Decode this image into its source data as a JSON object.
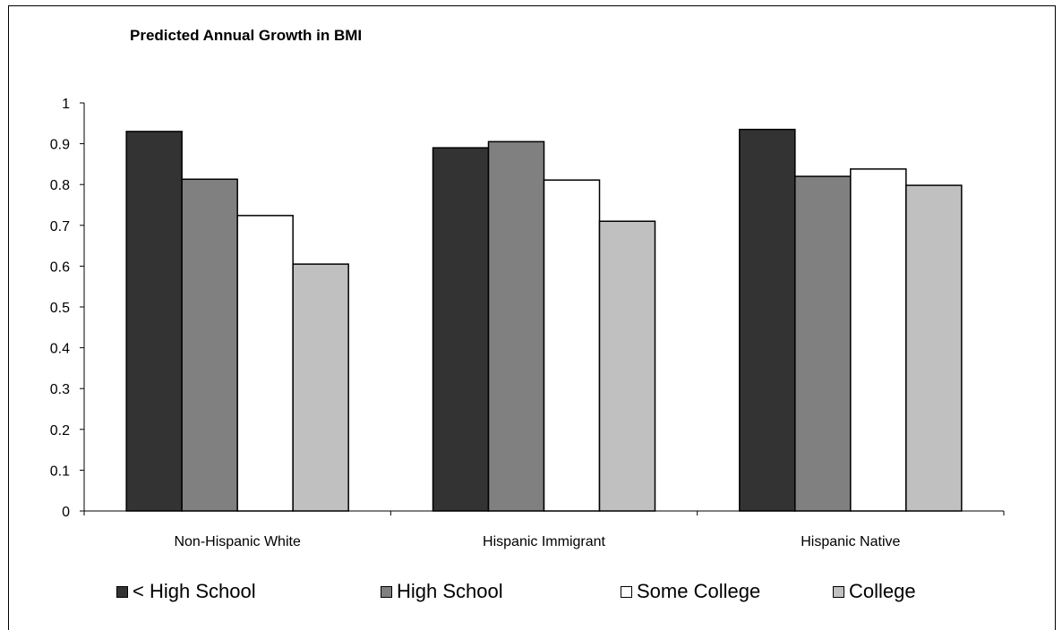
{
  "chart_data": {
    "type": "bar",
    "title": "Predicted Annual Growth in BMI",
    "xlabel": "",
    "ylabel": "",
    "ylim": [
      0,
      1
    ],
    "yticks": [
      "0",
      "0.1",
      "0.2",
      "0.3",
      "0.4",
      "0.5",
      "0.6",
      "0.7",
      "0.8",
      "0.9",
      "1"
    ],
    "categories": [
      "Non-Hispanic White",
      "Hispanic Immigrant",
      "Hispanic Native"
    ],
    "series": [
      {
        "name": "< High School",
        "color": "#333333",
        "values": [
          0.93,
          0.89,
          0.935
        ]
      },
      {
        "name": "High School",
        "color": "#808080",
        "values": [
          0.813,
          0.905,
          0.82
        ]
      },
      {
        "name": "Some College",
        "color": "#ffffff",
        "values": [
          0.724,
          0.811,
          0.838
        ]
      },
      {
        "name": "College",
        "color": "#c0c0c0",
        "values": [
          0.605,
          0.71,
          0.798
        ]
      }
    ],
    "grid": false,
    "legend_position": "bottom"
  }
}
